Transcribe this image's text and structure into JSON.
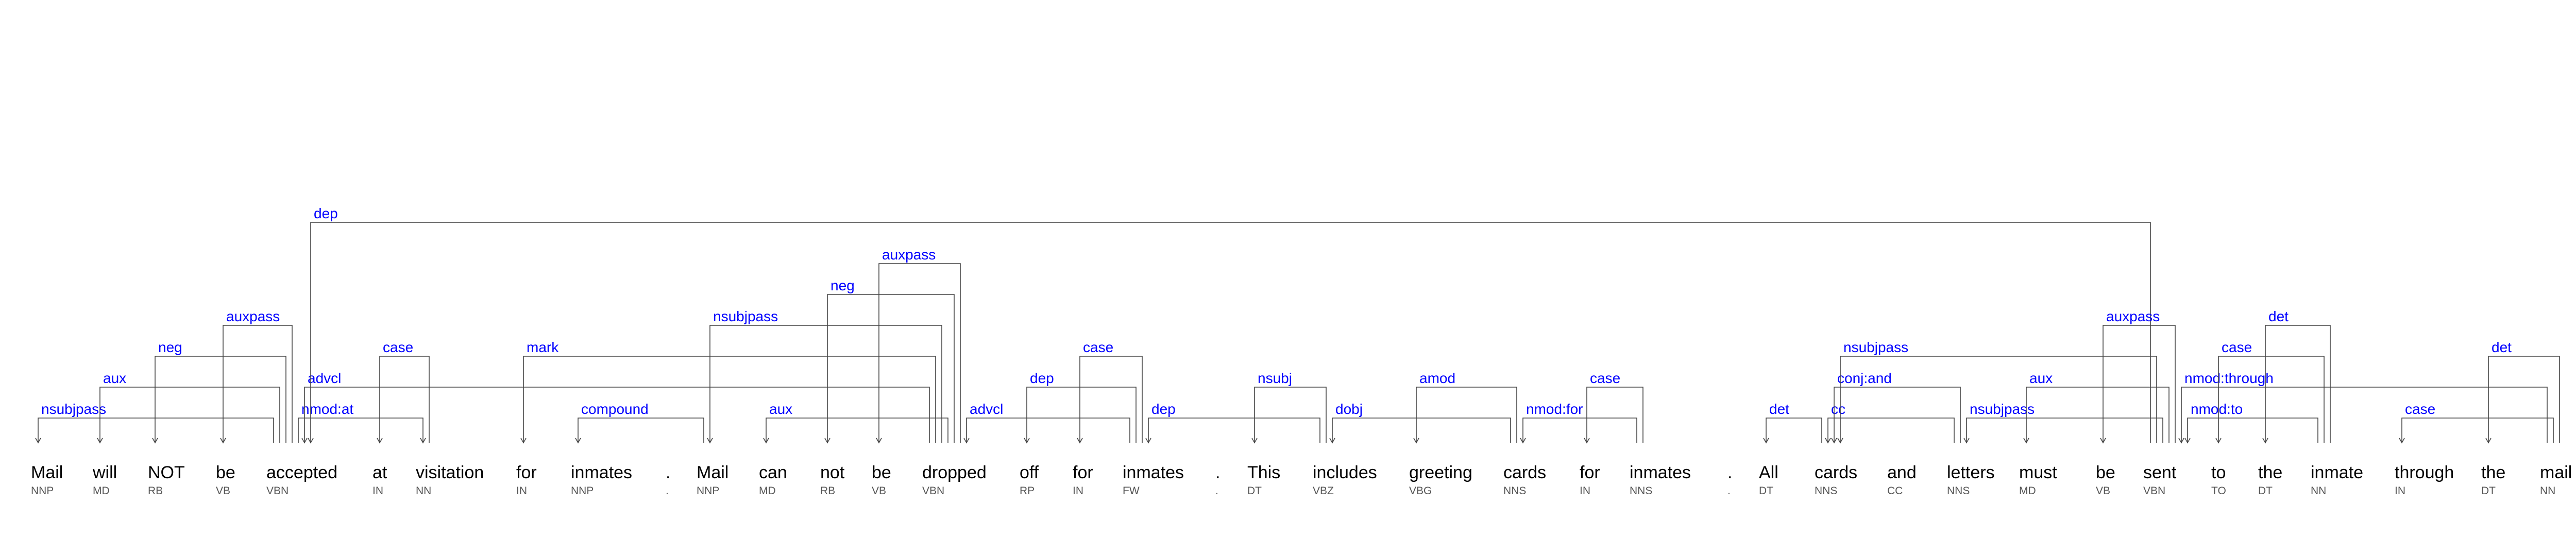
{
  "colors": {
    "label": "#0000ff",
    "edge": "#444444",
    "word": "#000000",
    "tag": "#555555"
  },
  "tokens": [
    {
      "word": "Mail",
      "tag": "NNP"
    },
    {
      "word": "will",
      "tag": "MD"
    },
    {
      "word": "NOT",
      "tag": "RB"
    },
    {
      "word": "be",
      "tag": "VB"
    },
    {
      "word": "accepted",
      "tag": "VBN"
    },
    {
      "word": "at",
      "tag": "IN"
    },
    {
      "word": "visitation",
      "tag": "NN"
    },
    {
      "word": "for",
      "tag": "IN"
    },
    {
      "word": "inmates",
      "tag": "NNP"
    },
    {
      "word": ".",
      "tag": "."
    },
    {
      "word": "Mail",
      "tag": "NNP"
    },
    {
      "word": "can",
      "tag": "MD"
    },
    {
      "word": "not",
      "tag": "RB"
    },
    {
      "word": "be",
      "tag": "VB"
    },
    {
      "word": "dropped",
      "tag": "VBN"
    },
    {
      "word": "off",
      "tag": "RP"
    },
    {
      "word": "for",
      "tag": "IN"
    },
    {
      "word": "inmates",
      "tag": "FW"
    },
    {
      "word": ".",
      "tag": "."
    },
    {
      "word": "This",
      "tag": "DT"
    },
    {
      "word": "includes",
      "tag": "VBZ"
    },
    {
      "word": "greeting",
      "tag": "VBG"
    },
    {
      "word": "cards",
      "tag": "NNS"
    },
    {
      "word": "for",
      "tag": "IN"
    },
    {
      "word": "inmates",
      "tag": "NNS"
    },
    {
      "word": ".",
      "tag": "."
    },
    {
      "word": "All",
      "tag": "DT"
    },
    {
      "word": "cards",
      "tag": "NNS"
    },
    {
      "word": "and",
      "tag": "CC"
    },
    {
      "word": "letters",
      "tag": "NNS"
    },
    {
      "word": "must",
      "tag": "MD"
    },
    {
      "word": "be",
      "tag": "VB"
    },
    {
      "word": "sent",
      "tag": "VBN"
    },
    {
      "word": "to",
      "tag": "TO"
    },
    {
      "word": "the",
      "tag": "DT"
    },
    {
      "word": "inmate",
      "tag": "NN"
    },
    {
      "word": "through",
      "tag": "IN"
    },
    {
      "word": "the",
      "tag": "DT"
    },
    {
      "word": "mail",
      "tag": "NN"
    },
    {
      "word": ".",
      "tag": "."
    }
  ],
  "arcs": [
    {
      "label": "nsubjpass",
      "head": 4,
      "dep": 0,
      "level": 1
    },
    {
      "label": "aux",
      "head": 4,
      "dep": 1,
      "level": 2
    },
    {
      "label": "neg",
      "head": 4,
      "dep": 2,
      "level": 3
    },
    {
      "label": "auxpass",
      "head": 4,
      "dep": 3,
      "level": 4
    },
    {
      "label": "nmod:at",
      "head": 4,
      "dep": 6,
      "level": 1
    },
    {
      "label": "case",
      "head": 6,
      "dep": 5,
      "level": 3
    },
    {
      "label": "advcl",
      "head": 14,
      "dep": 4,
      "level": 2
    },
    {
      "label": "dep",
      "head": 32,
      "dep": 4,
      "level": 6
    },
    {
      "label": "mark",
      "head": 14,
      "dep": 7,
      "level": 3
    },
    {
      "label": "compound",
      "head": 10,
      "dep": 8,
      "level": 1
    },
    {
      "label": "nsubjpass",
      "head": 14,
      "dep": 10,
      "level": 4
    },
    {
      "label": "aux",
      "head": 14,
      "dep": 11,
      "level": 1
    },
    {
      "label": "neg",
      "head": 14,
      "dep": 12,
      "level": 4.5
    },
    {
      "label": "auxpass",
      "head": 14,
      "dep": 13,
      "level": 5
    },
    {
      "label": "advcl",
      "head": 17,
      "dep": 14,
      "level": 1
    },
    {
      "label": "dep",
      "head": 17,
      "dep": 15,
      "level": 2
    },
    {
      "label": "case",
      "head": 17,
      "dep": 16,
      "level": 3
    },
    {
      "label": "dep",
      "head": 20,
      "dep": 17,
      "level": 1
    },
    {
      "label": "nsubj",
      "head": 20,
      "dep": 19,
      "level": 2
    },
    {
      "label": "dobj",
      "head": 22,
      "dep": 20,
      "level": 1
    },
    {
      "label": "amod",
      "head": 22,
      "dep": 21,
      "level": 2
    },
    {
      "label": "nmod:for",
      "head": 24,
      "dep": 22,
      "level": 1
    },
    {
      "label": "case",
      "head": 24,
      "dep": 23,
      "level": 2
    },
    {
      "label": "det",
      "head": 27,
      "dep": 26,
      "level": 1
    },
    {
      "label": "cc",
      "head": 29,
      "dep": 27,
      "level": 1
    },
    {
      "label": "conj:and",
      "head": 29,
      "dep": 27,
      "level": 2
    },
    {
      "label": "nsubjpass",
      "head": 32,
      "dep": 27,
      "level": 3
    },
    {
      "label": "nsubjpass",
      "head": 32,
      "dep": 29,
      "level": 1
    },
    {
      "label": "aux",
      "head": 32,
      "dep": 30,
      "level": 2
    },
    {
      "label": "auxpass",
      "head": 32,
      "dep": 31,
      "level": 4
    },
    {
      "label": "nmod:through",
      "head": 38,
      "dep": 32,
      "level": 2
    },
    {
      "label": "nmod:to",
      "head": 35,
      "dep": 32,
      "level": 1
    },
    {
      "label": "case",
      "head": 35,
      "dep": 33,
      "level": 3
    },
    {
      "label": "det",
      "head": 35,
      "dep": 34,
      "level": 4
    },
    {
      "label": "case",
      "head": 38,
      "dep": 36,
      "level": 1
    },
    {
      "label": "det",
      "head": 38,
      "dep": 37,
      "level": 3
    }
  ]
}
